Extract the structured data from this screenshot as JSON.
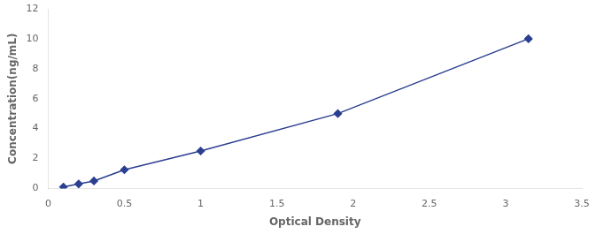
{
  "chart_data": {
    "type": "line",
    "x": [
      0.1,
      0.2,
      0.3,
      0.5,
      1.0,
      1.9,
      3.15
    ],
    "values": [
      0.1,
      0.3,
      0.5,
      1.25,
      2.5,
      5.0,
      10.0
    ],
    "color": "#2A3F8F",
    "marker": "diamond",
    "xlabel": "Optical Density",
    "ylabel": "Concentration(ng/mL)",
    "xlim": [
      0,
      3.5
    ],
    "ylim": [
      0,
      12
    ],
    "xticks": [
      0,
      0.5,
      1.0,
      1.5,
      2.0,
      2.5,
      3.0,
      3.5
    ],
    "yticks": [
      0,
      2,
      4,
      6,
      8,
      10,
      12
    ],
    "grid": false
  }
}
